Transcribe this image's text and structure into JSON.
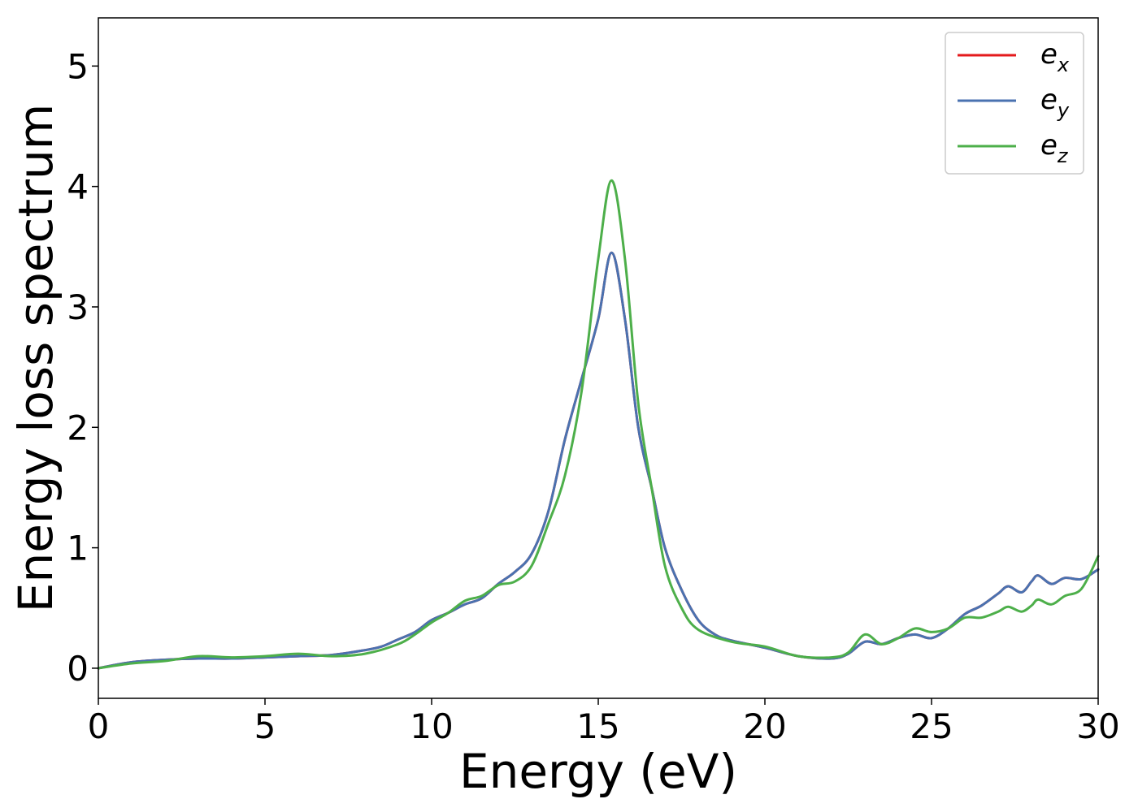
{
  "chart_data": {
    "type": "line",
    "title": "",
    "xlabel": "Energy (eV)",
    "ylabel": "Energy loss spectrum",
    "xlim": [
      0,
      30
    ],
    "ylim": [
      -0.25,
      5.4
    ],
    "xticks": [
      0,
      5,
      10,
      15,
      20,
      25,
      30
    ],
    "yticks": [
      0,
      1,
      2,
      3,
      4,
      5
    ],
    "grid": false,
    "legend_position": "top-right",
    "series": [
      {
        "name": "e",
        "subscript": "x",
        "color": "#e41a1c",
        "x": [
          0,
          1,
          2,
          3,
          4,
          5,
          6,
          7,
          8,
          8.5,
          9,
          9.5,
          10,
          10.5,
          11,
          11.5,
          12,
          12.5,
          13,
          13.5,
          14,
          14.5,
          15,
          15.4,
          15.8,
          16.2,
          16.6,
          17,
          17.5,
          18,
          18.5,
          19,
          20,
          21,
          22,
          22.5,
          23,
          23.5,
          24,
          24.5,
          25,
          25.5,
          26,
          26.5,
          27,
          27.3,
          27.7,
          28,
          28.2,
          28.6,
          29,
          29.5,
          30
        ],
        "y": [
          0.0,
          0.05,
          0.07,
          0.08,
          0.08,
          0.09,
          0.1,
          0.11,
          0.15,
          0.18,
          0.24,
          0.3,
          0.4,
          0.46,
          0.53,
          0.58,
          0.7,
          0.8,
          0.95,
          1.3,
          1.9,
          2.4,
          2.9,
          3.45,
          2.9,
          2.0,
          1.5,
          1.0,
          0.65,
          0.4,
          0.28,
          0.23,
          0.17,
          0.1,
          0.08,
          0.12,
          0.22,
          0.2,
          0.25,
          0.28,
          0.25,
          0.33,
          0.45,
          0.52,
          0.62,
          0.68,
          0.63,
          0.72,
          0.77,
          0.7,
          0.75,
          0.74,
          0.82
        ]
      },
      {
        "name": "e",
        "subscript": "y",
        "color": "#4a72b0",
        "x": [
          0,
          1,
          2,
          3,
          4,
          5,
          6,
          7,
          8,
          8.5,
          9,
          9.5,
          10,
          10.5,
          11,
          11.5,
          12,
          12.5,
          13,
          13.5,
          14,
          14.5,
          15,
          15.4,
          15.8,
          16.2,
          16.6,
          17,
          17.5,
          18,
          18.5,
          19,
          20,
          21,
          22,
          22.5,
          23,
          23.5,
          24,
          24.5,
          25,
          25.5,
          26,
          26.5,
          27,
          27.3,
          27.7,
          28,
          28.2,
          28.6,
          29,
          29.5,
          30
        ],
        "y": [
          0.0,
          0.05,
          0.07,
          0.08,
          0.08,
          0.09,
          0.1,
          0.11,
          0.15,
          0.18,
          0.24,
          0.3,
          0.4,
          0.46,
          0.53,
          0.58,
          0.7,
          0.8,
          0.95,
          1.3,
          1.9,
          2.4,
          2.9,
          3.45,
          2.9,
          2.0,
          1.5,
          1.0,
          0.65,
          0.4,
          0.28,
          0.23,
          0.17,
          0.1,
          0.08,
          0.12,
          0.22,
          0.2,
          0.25,
          0.28,
          0.25,
          0.33,
          0.45,
          0.52,
          0.62,
          0.68,
          0.63,
          0.72,
          0.77,
          0.7,
          0.75,
          0.74,
          0.82
        ]
      },
      {
        "name": "e",
        "subscript": "z",
        "color": "#4daf4a",
        "x": [
          0,
          1,
          2,
          3,
          4,
          5,
          6,
          7,
          8,
          9,
          9.5,
          10,
          10.5,
          11,
          11.5,
          12,
          12.5,
          13,
          13.5,
          14,
          14.5,
          15,
          15.4,
          15.8,
          16.2,
          16.6,
          17,
          17.5,
          18,
          19,
          20,
          21,
          22,
          22.5,
          23,
          23.5,
          24,
          24.5,
          25,
          25.5,
          26,
          26.5,
          27,
          27.3,
          27.7,
          28,
          28.2,
          28.6,
          29,
          29.5,
          30
        ],
        "y": [
          0.0,
          0.04,
          0.06,
          0.1,
          0.09,
          0.1,
          0.12,
          0.1,
          0.12,
          0.2,
          0.28,
          0.38,
          0.46,
          0.56,
          0.6,
          0.69,
          0.72,
          0.85,
          1.2,
          1.6,
          2.3,
          3.4,
          4.05,
          3.4,
          2.2,
          1.5,
          0.85,
          0.5,
          0.32,
          0.22,
          0.18,
          0.1,
          0.09,
          0.13,
          0.28,
          0.2,
          0.25,
          0.33,
          0.3,
          0.33,
          0.42,
          0.42,
          0.47,
          0.51,
          0.47,
          0.52,
          0.57,
          0.53,
          0.6,
          0.66,
          0.93
        ]
      }
    ]
  }
}
